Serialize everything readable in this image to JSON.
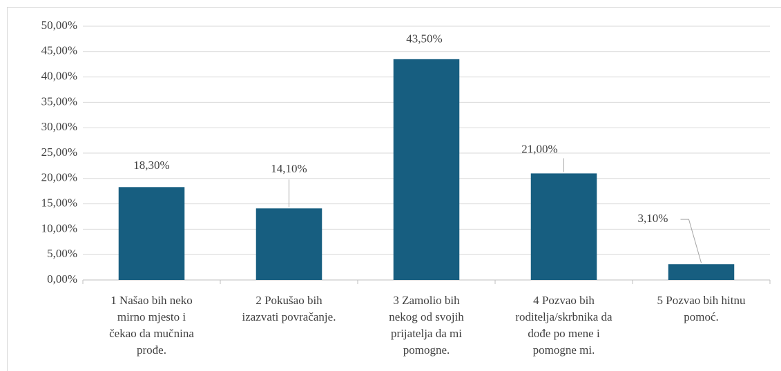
{
  "chart_data": {
    "type": "bar",
    "categories": [
      [
        "1 Našao bih neko",
        "mirno mjesto i",
        "čekao da mučnina",
        "prođe."
      ],
      [
        "2 Pokušao bih",
        "izazvati povračanje."
      ],
      [
        "3 Zamolio bih",
        "nekog od svojih",
        "prijatelja da mi",
        "pomogne."
      ],
      [
        "4 Pozvao bih",
        "roditelja/skrbnika da",
        "dođe po mene i",
        "pomogne mi."
      ],
      [
        "5 Pozvao bih hitnu",
        "pomoć."
      ]
    ],
    "values": [
      18.3,
      14.1,
      43.5,
      21.0,
      3.1
    ],
    "value_labels": [
      "18,30%",
      "14,10%",
      "43,50%",
      "21,00%",
      "3,10%"
    ],
    "color": "#175e80",
    "ylim": [
      0,
      50
    ],
    "yticks": [
      {
        "value": 0,
        "label": "0,00%"
      },
      {
        "value": 5,
        "label": "5,00%"
      },
      {
        "value": 10,
        "label": "10,00%"
      },
      {
        "value": 15,
        "label": "15,00%"
      },
      {
        "value": 20,
        "label": "20,00%"
      },
      {
        "value": 25,
        "label": "25,00%"
      },
      {
        "value": 30,
        "label": "30,00%"
      },
      {
        "value": 35,
        "label": "35,00%"
      },
      {
        "value": 40,
        "label": "40,00%"
      },
      {
        "value": 45,
        "label": "45,00%"
      },
      {
        "value": 50,
        "label": "50,00%"
      }
    ],
    "grid": true
  }
}
